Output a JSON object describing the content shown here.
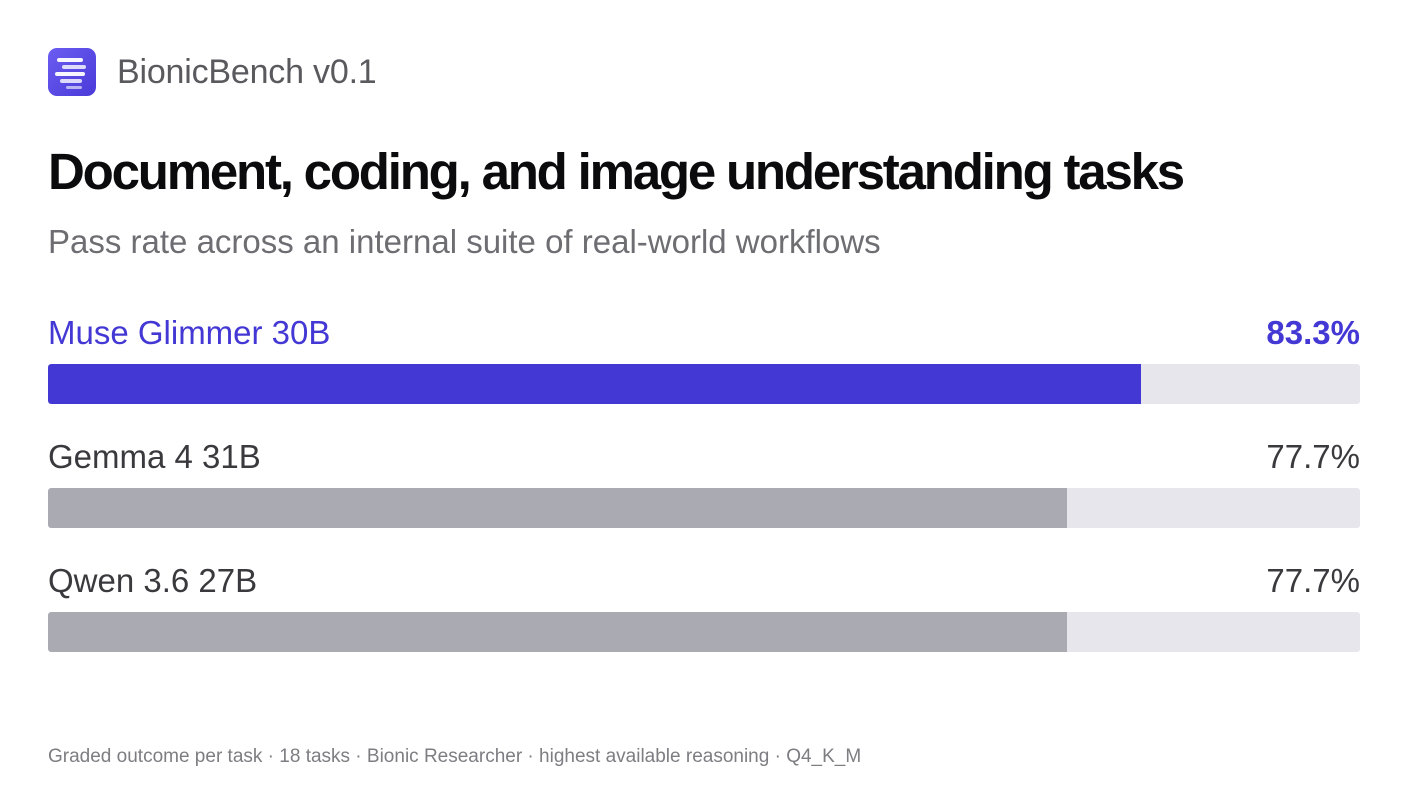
{
  "brand": {
    "name": "BionicBench v0.1",
    "logo_icon": "stacked-lines-icon",
    "logo_color": "#5b4ce6"
  },
  "chart_data": {
    "type": "bar",
    "orientation": "horizontal",
    "title": "Document, coding, and image understanding tasks",
    "subtitle": "Pass rate across an internal suite of real-world workflows",
    "categories": [
      "Muse Glimmer 30B",
      "Gemma 4 31B",
      "Qwen 3.6 27B"
    ],
    "values": [
      83.3,
      77.7,
      77.7
    ],
    "value_labels": [
      "83.3%",
      "77.7%",
      "77.7%"
    ],
    "highlight_index": 0,
    "xlim": [
      0,
      100
    ],
    "grid": false,
    "colors": {
      "highlight": "#4338d4",
      "bar": "#aaaab2",
      "track": "#e6e6ec"
    },
    "footnote": "Graded outcome per task · 18 tasks · Bionic Researcher · highest available reasoning · Q4_K_M"
  }
}
